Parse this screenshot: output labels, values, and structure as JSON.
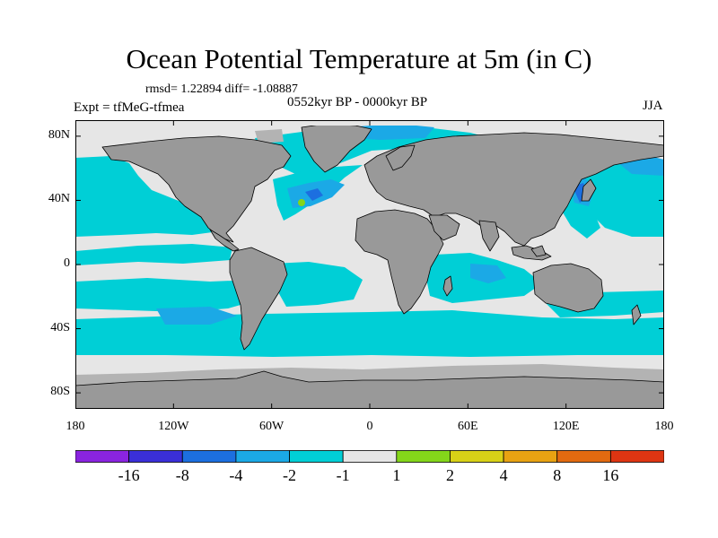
{
  "figure": {
    "title": "Ocean Potential Temperature at 5m (in C)",
    "stats": "rmsd= 1.22894 diff= -1.08887",
    "experiment": "Expt = tfMeG-tfmea",
    "period": "0552kyr BP - 0000kyr BP",
    "season": "JJA"
  },
  "axes": {
    "lon_range": [
      -180,
      180
    ],
    "lat_range": [
      -90,
      90
    ],
    "x_ticks": [
      {
        "lon": -180,
        "label": "180"
      },
      {
        "lon": -120,
        "label": "120W"
      },
      {
        "lon": -60,
        "label": "60W"
      },
      {
        "lon": 0,
        "label": "0"
      },
      {
        "lon": 60,
        "label": "60E"
      },
      {
        "lon": 120,
        "label": "120E"
      },
      {
        "lon": 180,
        "label": "180"
      }
    ],
    "y_ticks": [
      {
        "lat": 80,
        "label": "80N"
      },
      {
        "lat": 40,
        "label": "40N"
      },
      {
        "lat": 0,
        "label": "0"
      },
      {
        "lat": -40,
        "label": "40S"
      },
      {
        "lat": -80,
        "label": "80S"
      }
    ]
  },
  "colors": {
    "land": "#999999",
    "neutral": "#e6e6e6",
    "missing": "#b3b3b3"
  },
  "colorbar": {
    "bins": [
      {
        "color": "#8a24e0"
      },
      {
        "color": "#3a2fd8"
      },
      {
        "color": "#1c6fe0"
      },
      {
        "color": "#1ba9e6"
      },
      {
        "color": "#00cfd6"
      },
      {
        "color": "#e6e6e6"
      },
      {
        "color": "#84d61a"
      },
      {
        "color": "#d8d117"
      },
      {
        "color": "#e8a212"
      },
      {
        "color": "#e26a10"
      },
      {
        "color": "#de3512"
      }
    ],
    "labels": [
      "-16",
      "-8",
      "-4",
      "-2",
      "-1",
      "1",
      "2",
      "4",
      "8",
      "16"
    ]
  }
}
